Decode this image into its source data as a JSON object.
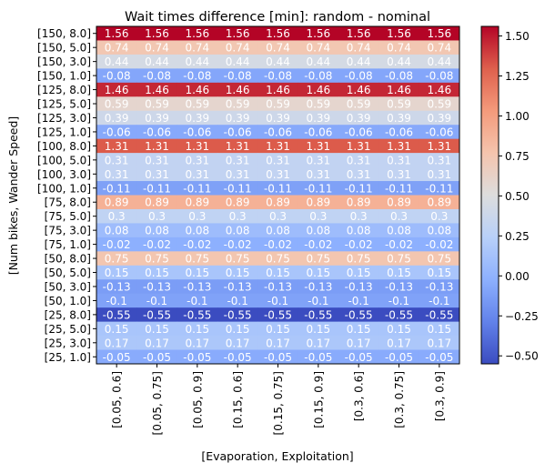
{
  "chart_data": {
    "type": "heatmap",
    "title": "Wait times difference [min]: random - nominal",
    "xlabel": "[Evaporation, Exploitation]",
    "ylabel": "[Num bikes, Wander Speed]",
    "colormap": "coolwarm",
    "vmin": -0.55,
    "vmax": 1.56,
    "x_categories": [
      "[0.05, 0.6]",
      "[0.05, 0.75]",
      "[0.05, 0.9]",
      "[0.15, 0.6]",
      "[0.15, 0.75]",
      "[0.15, 0.9]",
      "[0.3, 0.6]",
      "[0.3, 0.75]",
      "[0.3, 0.9]"
    ],
    "y_categories": [
      "[150, 8.0]",
      "[150, 5.0]",
      "[150, 3.0]",
      "[150, 1.0]",
      "[125, 8.0]",
      "[125, 5.0]",
      "[125, 3.0]",
      "[125, 1.0]",
      "[100, 8.0]",
      "[100, 5.0]",
      "[100, 3.0]",
      "[100, 1.0]",
      "[75, 8.0]",
      "[75, 5.0]",
      "[75, 3.0]",
      "[75, 1.0]",
      "[50, 8.0]",
      "[50, 5.0]",
      "[50, 3.0]",
      "[50, 1.0]",
      "[25, 8.0]",
      "[25, 5.0]",
      "[25, 3.0]",
      "[25, 1.0]"
    ],
    "row_values": [
      1.56,
      0.74,
      0.44,
      -0.08,
      1.46,
      0.59,
      0.39,
      -0.06,
      1.31,
      0.31,
      0.31,
      -0.11,
      0.89,
      0.3,
      0.08,
      -0.02,
      0.75,
      0.15,
      -0.13,
      -0.1,
      -0.55,
      0.15,
      0.17,
      -0.05
    ],
    "row_labels": [
      "1.56",
      "0.74",
      "0.44",
      "-0.08",
      "1.46",
      "0.59",
      "0.39",
      "-0.06",
      "1.31",
      "0.31",
      "0.31",
      "-0.11",
      "0.89",
      "0.3",
      "0.08",
      "-0.02",
      "0.75",
      "0.15",
      "-0.13",
      "-0.1",
      "-0.55",
      "0.15",
      "0.17",
      "-0.05"
    ],
    "colorbar_ticks": [
      -0.5,
      -0.25,
      0.0,
      0.25,
      0.5,
      0.75,
      1.0,
      1.25,
      1.5
    ],
    "colorbar_tick_labels": [
      "−0.50",
      "−0.25",
      "0.00",
      "0.25",
      "0.50",
      "0.75",
      "1.00",
      "1.25",
      "1.50"
    ]
  }
}
